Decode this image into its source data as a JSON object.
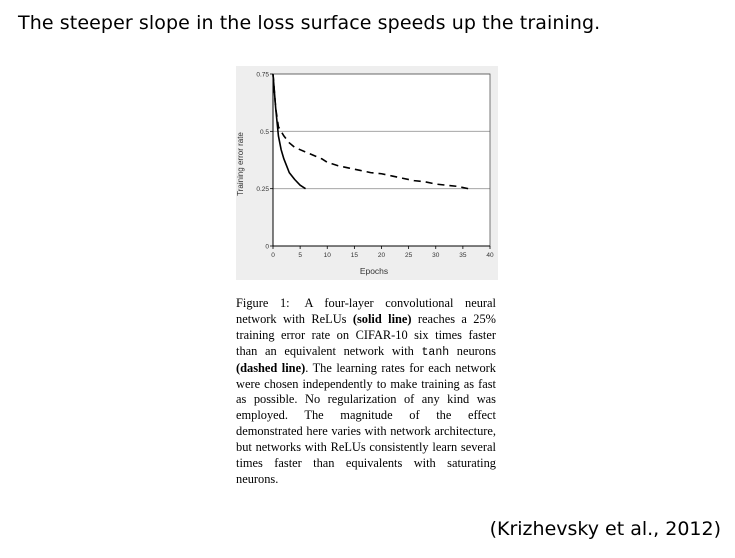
{
  "slide": {
    "title": "The steeper slope in the loss surface speeds up the training.",
    "citation": "(Krizhevsky et al., 2012)"
  },
  "caption": {
    "figure_label": "Figure 1:",
    "part1": " A four-layer convolutional neural network with ReLUs ",
    "solid_label": "(solid line)",
    "part2": " reaches a 25% training error rate on CIFAR-10 six times faster than an equivalent network with ",
    "tanh": "tanh",
    "part3": " neurons ",
    "dashed_label": "(dashed line)",
    "part4": ". The learning rates for each network were chosen independently to make training as fast as possible. No regularization of any kind was employed. The magnitude of the effect demonstrated here varies with network architecture, but networks with ReLUs consistently learn several times faster than equivalents with saturating neurons."
  },
  "chart_data": {
    "type": "line",
    "xlabel": "Epochs",
    "ylabel": "Training error rate",
    "xlim": [
      0,
      40
    ],
    "ylim": [
      0,
      0.75
    ],
    "xticks": [
      "0",
      "5",
      "10",
      "15",
      "20",
      "25",
      "30",
      "35",
      "40"
    ],
    "yticks": [
      "0",
      "0.25",
      "0.5",
      "0.75"
    ],
    "grid": "horizontal",
    "series": [
      {
        "style": "solid",
        "x": [
          0,
          0.5,
          1,
          1.5,
          2,
          2.5,
          3,
          4,
          5,
          6
        ],
        "y": [
          0.75,
          0.6,
          0.48,
          0.42,
          0.38,
          0.35,
          0.32,
          0.29,
          0.265,
          0.25
        ]
      },
      {
        "style": "dashed",
        "x": [
          0,
          0.5,
          1,
          2,
          3,
          4,
          5,
          6,
          7,
          8,
          9,
          10,
          12,
          14,
          16,
          18,
          20,
          22,
          24,
          26,
          28,
          30,
          32,
          34,
          36
        ],
        "y": [
          0.75,
          0.6,
          0.52,
          0.48,
          0.45,
          0.43,
          0.42,
          0.41,
          0.4,
          0.39,
          0.38,
          0.365,
          0.35,
          0.34,
          0.33,
          0.32,
          0.315,
          0.305,
          0.295,
          0.285,
          0.28,
          0.27,
          0.265,
          0.26,
          0.25
        ]
      }
    ]
  }
}
